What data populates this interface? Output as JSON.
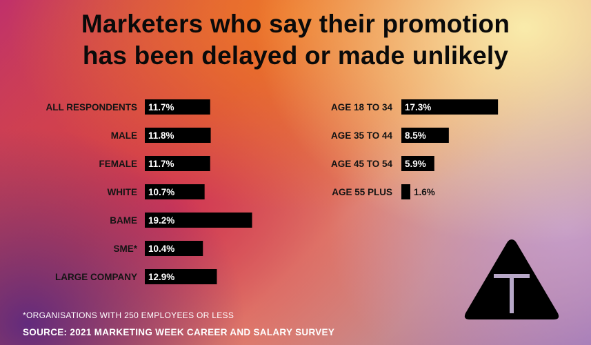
{
  "chart_data": {
    "type": "bar",
    "title": [
      "Marketers who say their promotion",
      "has been delayed or made unlikely"
    ],
    "unit": "%",
    "groups": [
      {
        "name": "left",
        "categories": [
          "ALL RESPONDENTS",
          "MALE",
          "FEMALE",
          "WHITE",
          "BAME",
          "SME*",
          "LARGE COMPANY"
        ],
        "values": [
          11.7,
          11.8,
          11.7,
          10.7,
          19.2,
          10.4,
          12.9
        ]
      },
      {
        "name": "right",
        "categories": [
          "AGE 18 TO 34",
          "AGE 35 TO 44",
          "AGE 45 TO 54",
          "AGE 55 PLUS"
        ],
        "values": [
          17.3,
          8.5,
          5.9,
          1.6
        ]
      }
    ],
    "footnote": "*ORGANISATIONS WITH 250 EMPLOYEES OR LESS",
    "source": "SOURCE: 2021 MARKETING WEEK CAREER AND SALARY SURVEY"
  },
  "colors": {
    "bar": "#000000",
    "bar_label": "#ffffff",
    "outside_label": "#141414"
  },
  "logo": {
    "icon": "t-triangle-logo-icon"
  }
}
